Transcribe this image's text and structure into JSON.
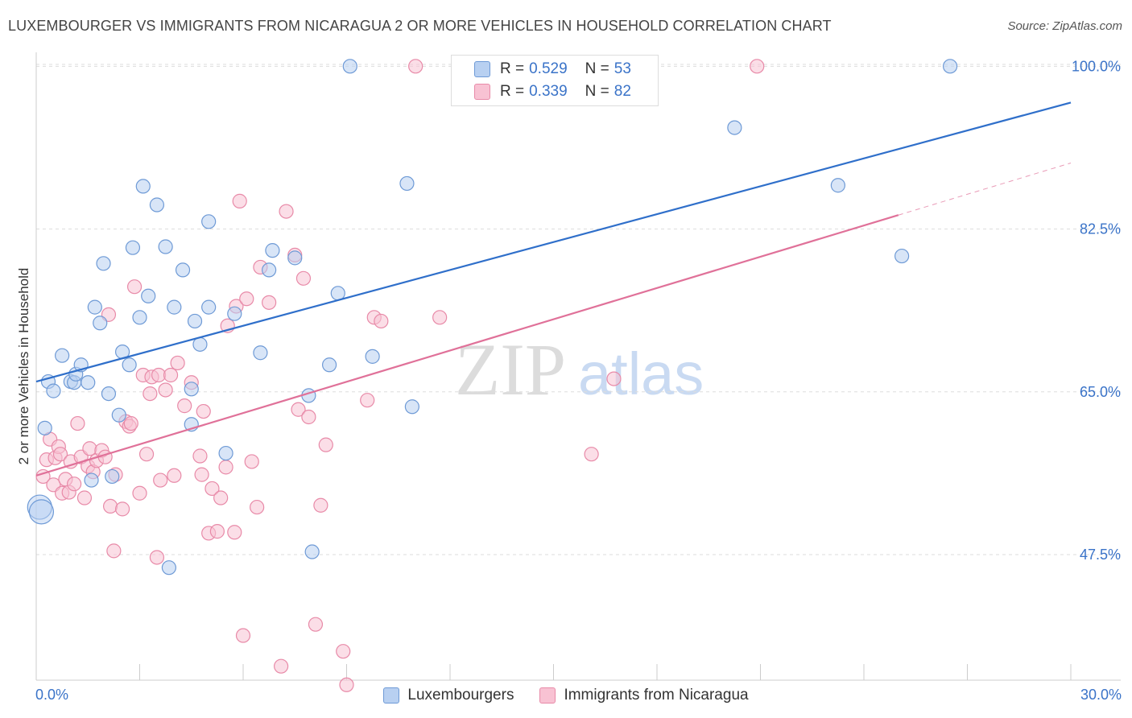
{
  "header": {
    "title": "LUXEMBOURGER VS IMMIGRANTS FROM NICARAGUA 2 OR MORE VEHICLES IN HOUSEHOLD CORRELATION CHART",
    "source": "Source: ZipAtlas.com"
  },
  "watermark": {
    "zip": "ZIP",
    "atlas": "atlas"
  },
  "colors": {
    "blue_fill": "#b8d0f1",
    "blue_stroke": "#6e9ad6",
    "blue_line": "#2f6fca",
    "pink_fill": "#f8c2d3",
    "pink_stroke": "#e88aa8",
    "pink_line": "#e07199",
    "axis_text": "#3a73c8"
  },
  "legend_top": {
    "rows": [
      {
        "r_label": "R =",
        "r_value": "0.529",
        "n_label": "N =",
        "n_value": "53"
      },
      {
        "r_label": "R =",
        "r_value": "0.339",
        "n_label": "N =",
        "n_value": "82"
      }
    ]
  },
  "legend_bottom": {
    "items": [
      "Luxembourgers",
      "Immigrants from Nicaragua"
    ]
  },
  "chart_data": {
    "type": "scatter",
    "title": "LUXEMBOURGER VS IMMIGRANTS FROM NICARAGUA 2 OR MORE VEHICLES IN HOUSEHOLD CORRELATION CHART",
    "xlabel": "",
    "ylabel": "2 or more Vehicles in Household",
    "xlim": [
      0,
      30
    ],
    "ylim": [
      34,
      101.5
    ],
    "x_tick_labels": [
      "0.0%",
      "30.0%"
    ],
    "y_ticks": [
      47.5,
      65.0,
      82.5,
      100.0
    ],
    "y_tick_labels": [
      "47.5%",
      "65.0%",
      "82.5%",
      "100.0%"
    ],
    "grid": true,
    "series": [
      {
        "name": "Luxembourgers",
        "r": "0.529",
        "n": "53",
        "trend": {
          "x": [
            0,
            30
          ],
          "y": [
            66.1,
            96.1
          ]
        },
        "points": [
          [
            0.25,
            61.1
          ],
          [
            0.35,
            66.1
          ],
          [
            0.5,
            65.1
          ],
          [
            0.75,
            68.9
          ],
          [
            1.0,
            66.1
          ],
          [
            1.1,
            66.0
          ],
          [
            1.15,
            66.9
          ],
          [
            1.3,
            67.9
          ],
          [
            1.5,
            66.0
          ],
          [
            1.6,
            55.5
          ],
          [
            1.7,
            74.1
          ],
          [
            1.85,
            72.4
          ],
          [
            1.95,
            78.8
          ],
          [
            2.1,
            64.8
          ],
          [
            2.2,
            55.9
          ],
          [
            2.4,
            62.5
          ],
          [
            2.5,
            69.3
          ],
          [
            2.7,
            67.9
          ],
          [
            2.8,
            80.5
          ],
          [
            3.0,
            73.0
          ],
          [
            3.1,
            87.1
          ],
          [
            3.25,
            75.3
          ],
          [
            3.5,
            85.1
          ],
          [
            3.75,
            80.6
          ],
          [
            3.85,
            46.1
          ],
          [
            4.0,
            74.1
          ],
          [
            4.25,
            78.1
          ],
          [
            4.5,
            61.5
          ],
          [
            4.5,
            65.3
          ],
          [
            4.6,
            72.6
          ],
          [
            4.75,
            70.1
          ],
          [
            5.0,
            83.3
          ],
          [
            5.0,
            74.1
          ],
          [
            5.5,
            58.4
          ],
          [
            5.75,
            73.4
          ],
          [
            6.5,
            69.2
          ],
          [
            6.75,
            78.1
          ],
          [
            6.85,
            80.2
          ],
          [
            7.5,
            79.4
          ],
          [
            7.9,
            64.6
          ],
          [
            8.0,
            47.8
          ],
          [
            8.5,
            67.9
          ],
          [
            8.75,
            75.6
          ],
          [
            9.1,
            100.0
          ],
          [
            9.75,
            68.8
          ],
          [
            10.75,
            87.4
          ],
          [
            10.9,
            63.4
          ],
          [
            20.25,
            93.4
          ],
          [
            23.25,
            87.2
          ],
          [
            25.1,
            79.6
          ],
          [
            26.5,
            100.0
          ]
        ],
        "large_points": [
          [
            0.1,
            52.6
          ],
          [
            0.15,
            52.1
          ]
        ]
      },
      {
        "name": "Immigrants from Nicaragua",
        "r": "0.339",
        "n": "82",
        "trend": {
          "x": [
            0,
            25
          ],
          "y": [
            56.0,
            84.0
          ]
        },
        "trend_extension": {
          "x": [
            25,
            30
          ],
          "y": [
            84.0,
            89.6
          ]
        },
        "points": [
          [
            0.2,
            55.9
          ],
          [
            0.3,
            57.7
          ],
          [
            0.4,
            59.9
          ],
          [
            0.5,
            55.0
          ],
          [
            0.55,
            57.9
          ],
          [
            0.65,
            59.1
          ],
          [
            0.7,
            58.3
          ],
          [
            0.75,
            54.1
          ],
          [
            0.85,
            55.6
          ],
          [
            0.95,
            54.2
          ],
          [
            1.0,
            57.5
          ],
          [
            1.1,
            55.1
          ],
          [
            1.2,
            61.6
          ],
          [
            1.3,
            58.0
          ],
          [
            1.4,
            53.6
          ],
          [
            1.5,
            57.0
          ],
          [
            1.55,
            58.9
          ],
          [
            1.65,
            56.4
          ],
          [
            1.75,
            57.6
          ],
          [
            1.9,
            58.7
          ],
          [
            2.0,
            58.0
          ],
          [
            2.1,
            73.3
          ],
          [
            2.15,
            52.7
          ],
          [
            2.25,
            47.9
          ],
          [
            2.3,
            56.1
          ],
          [
            2.5,
            52.4
          ],
          [
            2.6,
            61.8
          ],
          [
            2.7,
            61.3
          ],
          [
            2.75,
            61.6
          ],
          [
            2.85,
            76.3
          ],
          [
            3.0,
            54.1
          ],
          [
            3.1,
            66.8
          ],
          [
            3.2,
            58.3
          ],
          [
            3.3,
            64.8
          ],
          [
            3.35,
            66.6
          ],
          [
            3.5,
            47.2
          ],
          [
            3.55,
            66.8
          ],
          [
            3.6,
            55.5
          ],
          [
            3.75,
            65.2
          ],
          [
            3.9,
            66.8
          ],
          [
            4.0,
            56.0
          ],
          [
            4.1,
            68.1
          ],
          [
            4.3,
            63.5
          ],
          [
            4.5,
            66.0
          ],
          [
            4.75,
            58.1
          ],
          [
            4.8,
            56.1
          ],
          [
            4.85,
            62.9
          ],
          [
            5.0,
            49.8
          ],
          [
            5.1,
            54.6
          ],
          [
            5.25,
            50.0
          ],
          [
            5.35,
            53.6
          ],
          [
            5.5,
            56.9
          ],
          [
            5.55,
            72.1
          ],
          [
            5.75,
            49.9
          ],
          [
            5.8,
            74.2
          ],
          [
            5.9,
            85.5
          ],
          [
            6.0,
            38.8
          ],
          [
            6.1,
            75.0
          ],
          [
            6.25,
            57.5
          ],
          [
            6.4,
            52.6
          ],
          [
            6.5,
            78.4
          ],
          [
            6.75,
            74.6
          ],
          [
            7.1,
            35.5
          ],
          [
            7.25,
            84.4
          ],
          [
            7.5,
            79.7
          ],
          [
            7.6,
            63.1
          ],
          [
            7.75,
            77.2
          ],
          [
            7.9,
            62.3
          ],
          [
            8.1,
            40.0
          ],
          [
            8.25,
            52.8
          ],
          [
            8.4,
            59.3
          ],
          [
            8.9,
            37.1
          ],
          [
            9.0,
            33.5
          ],
          [
            9.6,
            64.1
          ],
          [
            9.8,
            73.0
          ],
          [
            10.0,
            72.6
          ],
          [
            11.0,
            100.0
          ],
          [
            11.7,
            73.0
          ],
          [
            16.1,
            58.3
          ],
          [
            16.75,
            66.4
          ],
          [
            20.9,
            100.0
          ]
        ]
      }
    ]
  }
}
